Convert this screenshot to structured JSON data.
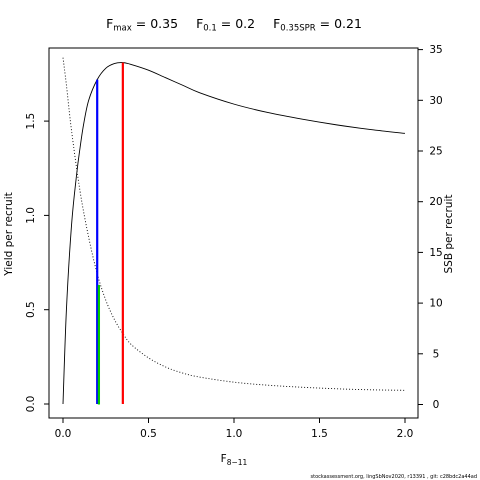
{
  "chart_data": {
    "type": "line",
    "title_parts": {
      "fmax_base": "F",
      "fmax_sub": "max",
      "fmax_value": " = 0.35",
      "f01_base": "F",
      "f01_sub": "0.1",
      "f01_value": " = 0.2",
      "fspr_base": "F",
      "fspr_sub": "0.35SPR",
      "fspr_value": " = 0.21"
    },
    "xlabel_base": "F",
    "xlabel_sub": "8−11",
    "ylabel_left": "Yield per recruit",
    "ylabel_right": "SSB per recruit",
    "xlim": [
      0,
      2
    ],
    "ylim_left": [
      0,
      1.81
    ],
    "ylim_right": [
      0,
      34.5
    ],
    "x_ticks": [
      "0.0",
      "0.5",
      "1.0",
      "1.5",
      "2.0"
    ],
    "y_left_ticks": [
      "0.0",
      "0.5",
      "1.0",
      "1.5"
    ],
    "y_right_ticks": [
      "0",
      "5",
      "10",
      "15",
      "20",
      "25",
      "30",
      "35"
    ],
    "series": [
      {
        "name": "",
        "axis": "left",
        "style": "solid",
        "color": "#000000",
        "x": [
          0,
          0.02,
          0.05,
          0.08,
          0.1,
          0.12,
          0.15,
          0.2,
          0.25,
          0.3,
          0.35,
          0.4,
          0.5,
          0.6,
          0.7,
          0.8,
          1.0,
          1.2,
          1.4,
          1.6,
          1.8,
          2.0
        ],
        "y": [
          0,
          0.5,
          0.95,
          1.22,
          1.36,
          1.48,
          1.61,
          1.72,
          1.78,
          1.805,
          1.81,
          1.8,
          1.77,
          1.73,
          1.69,
          1.65,
          1.59,
          1.545,
          1.51,
          1.48,
          1.455,
          1.435
        ]
      },
      {
        "name": "",
        "axis": "right",
        "style": "dotted",
        "color": "#000000",
        "x": [
          0,
          0.02,
          0.05,
          0.1,
          0.15,
          0.2,
          0.25,
          0.3,
          0.35,
          0.4,
          0.5,
          0.6,
          0.7,
          0.8,
          1.0,
          1.2,
          1.4,
          1.6,
          1.8,
          2.0
        ],
        "y": [
          34.2,
          31.5,
          27.0,
          21.0,
          16.5,
          12.9,
          10.3,
          8.4,
          7.0,
          5.9,
          4.6,
          3.7,
          3.1,
          2.7,
          2.2,
          1.9,
          1.7,
          1.55,
          1.45,
          1.4
        ]
      }
    ],
    "reference_lines": [
      {
        "name": "F0.1",
        "x": 0.2,
        "axis": "left",
        "y0": 0,
        "y1": 1.72,
        "color": "#0000ff"
      },
      {
        "name": "F0.35SPR",
        "x": 0.21,
        "axis": "right",
        "y0": 0,
        "y1": 11.8,
        "color": "#00cc00"
      },
      {
        "name": "Fmax",
        "x": 0.35,
        "axis": "left",
        "y0": 0,
        "y1": 1.81,
        "color": "#ff0000"
      }
    ],
    "footer": "stockassessment.org, lingSbNov2020, r13391 , git: c28bdc2a44ad"
  }
}
